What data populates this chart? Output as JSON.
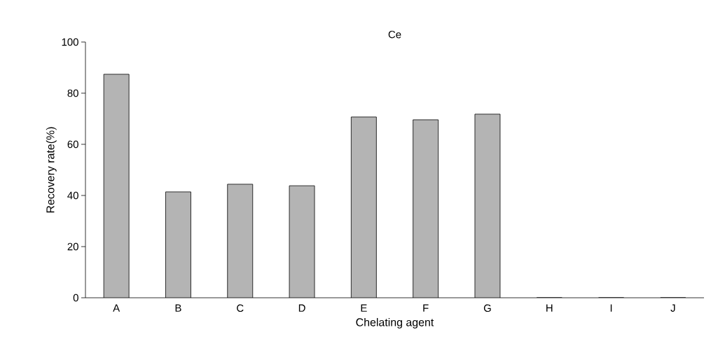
{
  "chart_data": {
    "type": "bar",
    "title": "Ce",
    "xlabel": "Chelating agent",
    "ylabel": "Recovery rate(%)",
    "categories": [
      "A",
      "B",
      "C",
      "D",
      "E",
      "F",
      "G",
      "H",
      "I",
      "J"
    ],
    "values": [
      87.4,
      41.4,
      44.4,
      43.8,
      70.7,
      69.6,
      71.8,
      0,
      0,
      0
    ],
    "color": "#b4b4b4",
    "ylim": [
      0,
      100
    ],
    "yticks": [
      0,
      20,
      40,
      60,
      80,
      100
    ]
  }
}
